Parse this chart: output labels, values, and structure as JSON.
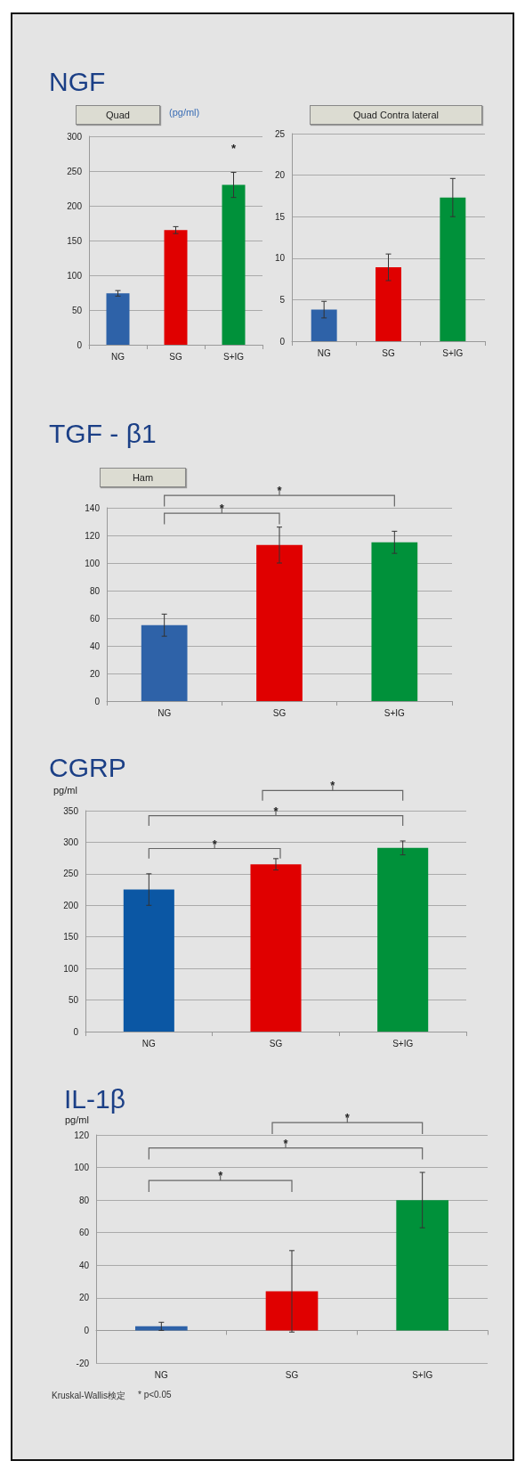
{
  "chart_data": [
    {
      "type": "bar",
      "title": "NGF",
      "subtitle": "Quad",
      "ylabel": "(pg/ml)",
      "categories": [
        "NG",
        "SG",
        "S+IG"
      ],
      "values": [
        74,
        165,
        230
      ],
      "colors": [
        "#2e62a8",
        "#e00000",
        "#00913a"
      ],
      "errors": [
        4,
        5,
        18
      ],
      "ylim": [
        0,
        300
      ],
      "yticks": [
        0,
        50,
        100,
        150,
        200,
        250,
        300
      ],
      "grid": "y",
      "annotations": [
        "*"
      ]
    },
    {
      "type": "bar",
      "subtitle": "Quad Contra lateral",
      "categories": [
        "NG",
        "SG",
        "S+IG"
      ],
      "values": [
        3.8,
        8.9,
        17.3
      ],
      "colors": [
        "#2e62a8",
        "#e00000",
        "#00913a"
      ],
      "errors": [
        1,
        1.6,
        2.3
      ],
      "ylim": [
        0,
        25
      ],
      "yticks": [
        0,
        5,
        10,
        15,
        20,
        25
      ],
      "grid": "y"
    },
    {
      "type": "bar",
      "title": "TGF - β1",
      "subtitle": "Ham",
      "categories": [
        "NG",
        "SG",
        "S+IG"
      ],
      "values": [
        55,
        113,
        115
      ],
      "colors": [
        "#2e62a8",
        "#e00000",
        "#00913a"
      ],
      "errors": [
        8,
        13,
        8
      ],
      "ylim": [
        0,
        140
      ],
      "yticks": [
        0,
        20,
        40,
        60,
        80,
        100,
        120,
        140
      ],
      "grid": "y",
      "annotations": [
        "*",
        "*"
      ]
    },
    {
      "type": "bar",
      "title": "CGRP",
      "ylabel": "pg/ml",
      "categories": [
        "NG",
        "SG",
        "S+IG"
      ],
      "values": [
        225,
        265,
        291
      ],
      "colors": [
        "#0b57a4",
        "#e00000",
        "#00913a"
      ],
      "errors": [
        25,
        9,
        11
      ],
      "ylim": [
        0,
        350
      ],
      "yticks": [
        0,
        50,
        100,
        150,
        200,
        250,
        300,
        350
      ],
      "grid": "y",
      "annotations": [
        "*",
        "*",
        "*"
      ]
    },
    {
      "type": "bar",
      "title": "IL-1β",
      "ylabel": "pg/ml",
      "categories": [
        "NG",
        "SG",
        "S+IG"
      ],
      "values": [
        2.5,
        24,
        80
      ],
      "colors": [
        "#2e62a8",
        "#e00000",
        "#00913a"
      ],
      "errors": [
        2.5,
        25,
        17
      ],
      "ylim": [
        -20,
        120
      ],
      "yticks": [
        -20,
        0,
        20,
        40,
        60,
        80,
        100,
        120
      ],
      "grid": "y",
      "annotations": [
        "*",
        "*",
        "*",
        "Kruskal-Wallis検定",
        "* p<0.05"
      ]
    }
  ]
}
